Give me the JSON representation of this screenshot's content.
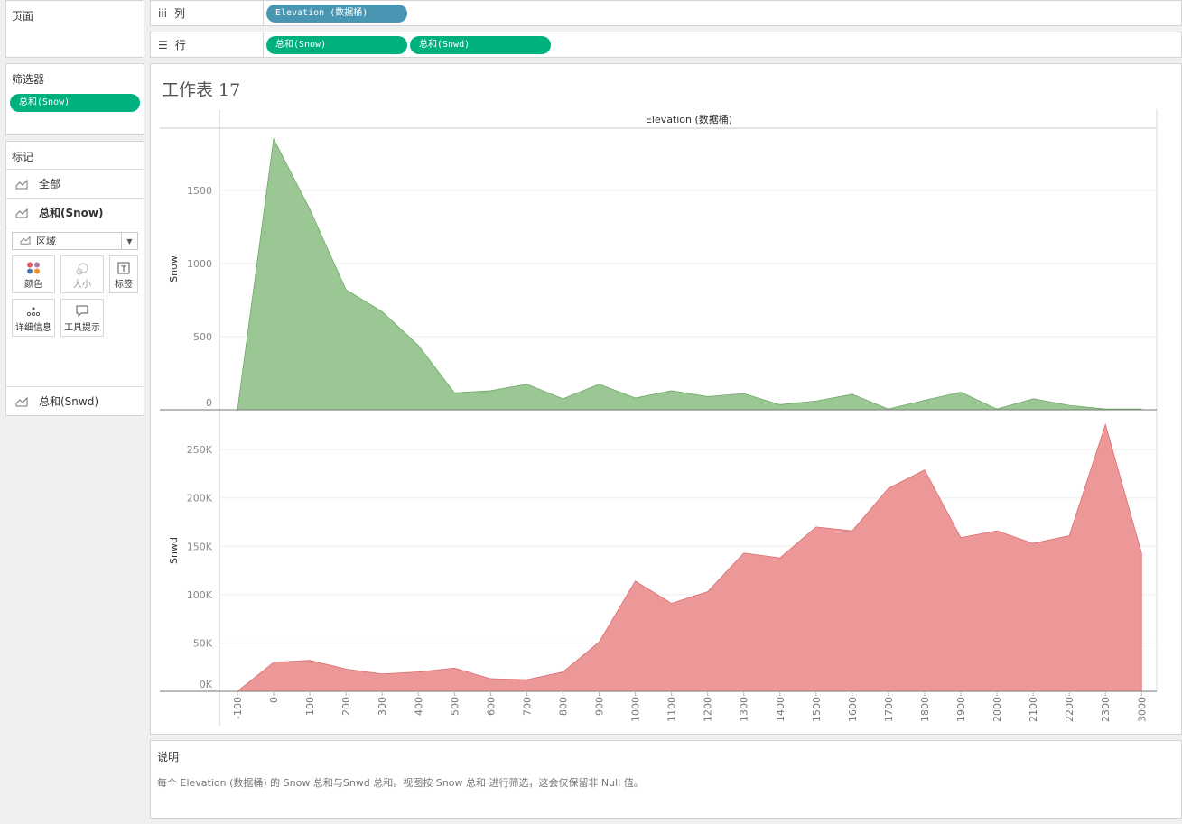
{
  "pages": {
    "title": "页面"
  },
  "filters": {
    "title": "筛选器",
    "pill": "总和(Snow)"
  },
  "marks": {
    "title": "标记",
    "all_label": "全部",
    "snow_label": "总和(Snow)",
    "mark_type": "区域",
    "buttons": {
      "color": "颜色",
      "size": "大小",
      "label": "标签",
      "detail": "详细信息",
      "tooltip": "工具提示"
    },
    "snwd_label": "总和(Snwd)"
  },
  "shelves": {
    "columns_label": "列",
    "columns_pill": "Elevation (数据桶)",
    "rows_label": "行",
    "rows_pills": [
      "总和(Snow)",
      "总和(Snwd)"
    ]
  },
  "sheet": {
    "title": "工作表 17"
  },
  "caption": {
    "title": "说明",
    "text": "每个 Elevation (数据桶) 的 Snow 总和与Snwd 总和。视图按 Snow 总和 进行筛选，这会仅保留非 Null 值。"
  },
  "colors": {
    "snow": "#98c691",
    "snow_line": "#6da865",
    "snwd": "#ec9697",
    "snwd_line": "#dd6d70",
    "pill_green": "#00b180",
    "pill_blue": "#4996b2"
  },
  "chart_data": {
    "type": "area",
    "header": "Elevation (数据桶)",
    "xlabel": "",
    "x": [
      -100,
      0,
      100,
      200,
      300,
      400,
      500,
      600,
      700,
      800,
      900,
      1000,
      1100,
      1200,
      1300,
      1400,
      1500,
      1600,
      1700,
      1800,
      1900,
      2000,
      2100,
      2200,
      2300,
      3000
    ],
    "x_tick_labels": [
      "-100",
      "0",
      "100",
      "200",
      "300",
      "400",
      "500",
      "600",
      "700",
      "800",
      "900",
      "1000",
      "1100",
      "1200",
      "1300",
      "1400",
      "1500",
      "1600",
      "1700",
      "1800",
      "1900",
      "2000",
      "2100",
      "2200",
      "2300",
      "3000"
    ],
    "panes": [
      {
        "series": "Snow",
        "ylabel": "Snow",
        "ylim": [
          0,
          1850
        ],
        "yticks": [
          0,
          500,
          1000,
          1500
        ],
        "ytick_labels": [
          "0",
          "500",
          "1000",
          "1500"
        ],
        "values": [
          0,
          1850,
          1370,
          820,
          670,
          440,
          115,
          130,
          175,
          75,
          175,
          80,
          130,
          90,
          110,
          35,
          60,
          105,
          5,
          65,
          120,
          5,
          75,
          30,
          5,
          5
        ]
      },
      {
        "series": "Snwd",
        "ylabel": "Snwd",
        "ylim": [
          0,
          280000
        ],
        "yticks": [
          0,
          50000,
          100000,
          150000,
          200000,
          250000
        ],
        "ytick_labels": [
          "0K",
          "50K",
          "100K",
          "150K",
          "200K",
          "250K"
        ],
        "values": [
          0,
          30000,
          32000,
          23000,
          18000,
          20000,
          24000,
          13000,
          12000,
          20000,
          51000,
          114000,
          91000,
          103000,
          143000,
          138000,
          170000,
          166000,
          210000,
          229000,
          159000,
          166000,
          153000,
          161000,
          276000,
          143000
        ]
      }
    ]
  }
}
